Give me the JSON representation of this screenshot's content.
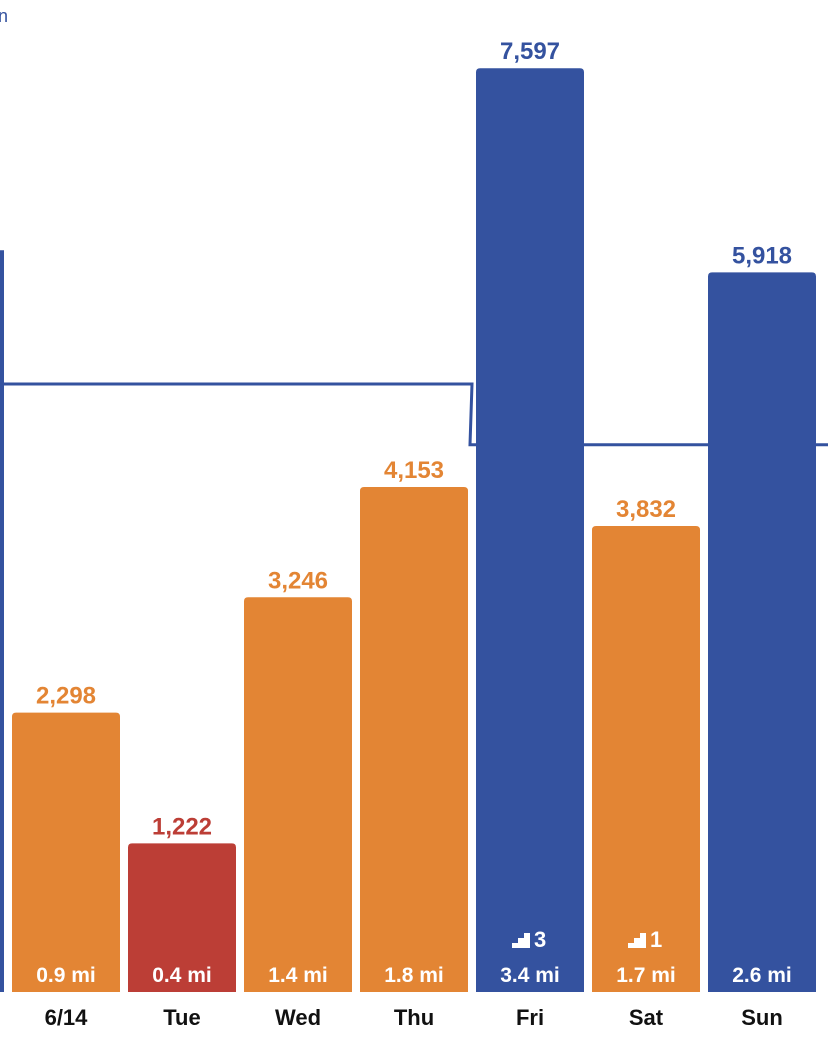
{
  "partial_text": {
    "top_left": "n"
  },
  "colors": {
    "goal_met": "#34529f",
    "below_goal": "#e38534",
    "far_below": "#bc3e36",
    "goal_line": "#34529f",
    "day_text": "#111111"
  },
  "chart_data": {
    "type": "bar",
    "categories": [
      "6/14",
      "Tue",
      "Wed",
      "Thu",
      "Fri",
      "Sat",
      "Sun"
    ],
    "values": [
      2298,
      1222,
      3246,
      4153,
      7597,
      3832,
      5918
    ],
    "value_labels": [
      "2,298",
      "1,222",
      "3,246",
      "4,153",
      "7,597",
      "3,832",
      "5,918"
    ],
    "distance_labels": [
      "0.9 mi",
      "0.4 mi",
      "1.4 mi",
      "1.8 mi",
      "3.4 mi",
      "1.7 mi",
      "2.6 mi"
    ],
    "floors": [
      null,
      null,
      null,
      null,
      "3",
      "1",
      null
    ],
    "status": [
      "below_goal",
      "far_below",
      "below_goal",
      "below_goal",
      "goal_met",
      "below_goal",
      "goal_met"
    ],
    "goal_line": [
      {
        "from_category": "6/14",
        "to_category": "Thu",
        "value": 5000
      },
      {
        "from_category": "Fri",
        "to_category": "Sun",
        "value": 4500
      }
    ],
    "prev_partial_bar": {
      "value": 6100,
      "status": "goal_met"
    },
    "ylim": [
      0,
      8400
    ],
    "grid": false,
    "legend": "none",
    "title": "",
    "xlabel": "",
    "ylabel": ""
  }
}
